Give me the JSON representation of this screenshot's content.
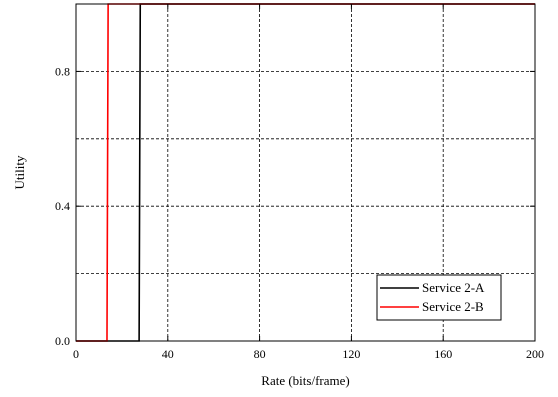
{
  "chart_data": {
    "type": "line",
    "title": "",
    "xlabel": "Rate (bits/frame)",
    "ylabel": "Utility",
    "xlim": [
      0,
      200
    ],
    "ylim": [
      0,
      1
    ],
    "x_ticks": [
      0,
      40,
      80,
      120,
      160,
      200
    ],
    "x_tick_labels": [
      "0",
      "40",
      "80",
      "120",
      "160",
      "200"
    ],
    "y_ticks": [
      0,
      0.4,
      0.8
    ],
    "y_tick_labels": [
      "0.0",
      "0.4",
      "0.8"
    ],
    "grid": true,
    "legend_position": "bottom-right",
    "series": [
      {
        "name": "Service 2-A",
        "color": "#000000",
        "x": [
          0,
          27.5,
          28,
          200
        ],
        "y": [
          0,
          0,
          1,
          1
        ]
      },
      {
        "name": "Service 2-B",
        "color": "#ff0000",
        "x": [
          0,
          13.5,
          14,
          200
        ],
        "y": [
          0,
          0,
          1,
          1
        ]
      }
    ]
  }
}
